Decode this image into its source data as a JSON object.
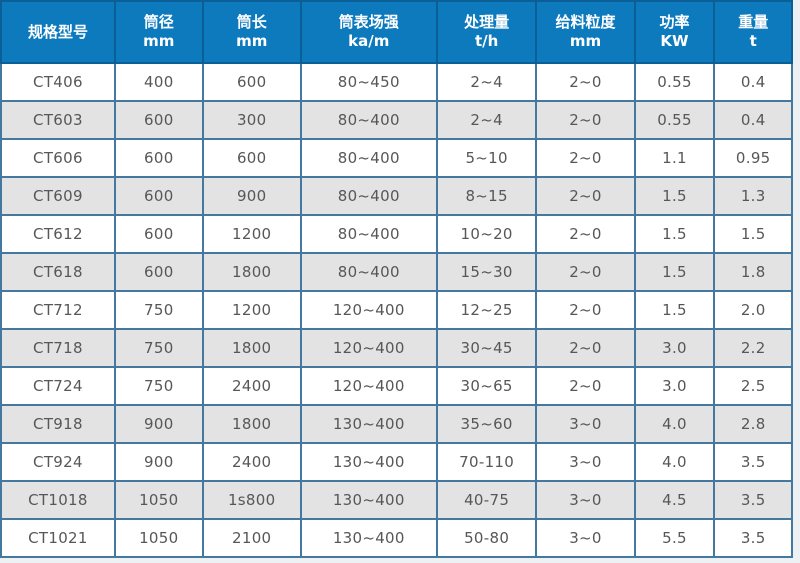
{
  "chart_data": {
    "type": "table",
    "title": "",
    "columns": [
      {
        "label": "规格型号",
        "unit": ""
      },
      {
        "label": "筒径",
        "unit": "mm"
      },
      {
        "label": "筒长",
        "unit": "mm"
      },
      {
        "label": "筒表场强",
        "unit": "ka/m"
      },
      {
        "label": "处理量",
        "unit": "t/h"
      },
      {
        "label": "给料粒度",
        "unit": "mm"
      },
      {
        "label": "功率",
        "unit": "KW"
      },
      {
        "label": "重量",
        "unit": "t"
      }
    ],
    "rows": [
      [
        "CT406",
        "400",
        "600",
        "80~450",
        "2~4",
        "2~0",
        "0.55",
        "0.4"
      ],
      [
        "CT603",
        "600",
        "300",
        "80~400",
        "2~4",
        "2~0",
        "0.55",
        "0.4"
      ],
      [
        "CT606",
        "600",
        "600",
        "80~400",
        "5~10",
        "2~0",
        "1.1",
        "0.95"
      ],
      [
        "CT609",
        "600",
        "900",
        "80~400",
        "8~15",
        "2~0",
        "1.5",
        "1.3"
      ],
      [
        "CT612",
        "600",
        "1200",
        "80~400",
        "10~20",
        "2~0",
        "1.5",
        "1.5"
      ],
      [
        "CT618",
        "600",
        "1800",
        "80~400",
        "15~30",
        "2~0",
        "1.5",
        "1.8"
      ],
      [
        "CT712",
        "750",
        "1200",
        "120~400",
        "12~25",
        "2~0",
        "1.5",
        "2.0"
      ],
      [
        "CT718",
        "750",
        "1800",
        "120~400",
        "30~45",
        "2~0",
        "3.0",
        "2.2"
      ],
      [
        "CT724",
        "750",
        "2400",
        "120~400",
        "30~65",
        "2~0",
        "3.0",
        "2.5"
      ],
      [
        "CT918",
        "900",
        "1800",
        "130~400",
        "35~60",
        "3~0",
        "4.0",
        "2.8"
      ],
      [
        "CT924",
        "900",
        "2400",
        "130~400",
        "70-110",
        "3~0",
        "4.0",
        "3.5"
      ],
      [
        "CT1018",
        "1050",
        "1s800",
        "130~400",
        "40-75",
        "3~0",
        "4.5",
        "3.5"
      ],
      [
        "CT1021",
        "1050",
        "2100",
        "130~400",
        "50-80",
        "3~0",
        "5.5",
        "3.5"
      ]
    ],
    "layout_hints": {
      "header_bg": "#0d7abe",
      "header_border": "#0b5e96",
      "header_text": "#ffffff",
      "cell_border": "#44799f",
      "row_bg": "#ffffff",
      "row_alt_bg": "#e3e3e3",
      "cell_text": "#565758",
      "page_bg": "#eef1f4",
      "stripe_pattern": "odd-white-even-gray"
    }
  }
}
